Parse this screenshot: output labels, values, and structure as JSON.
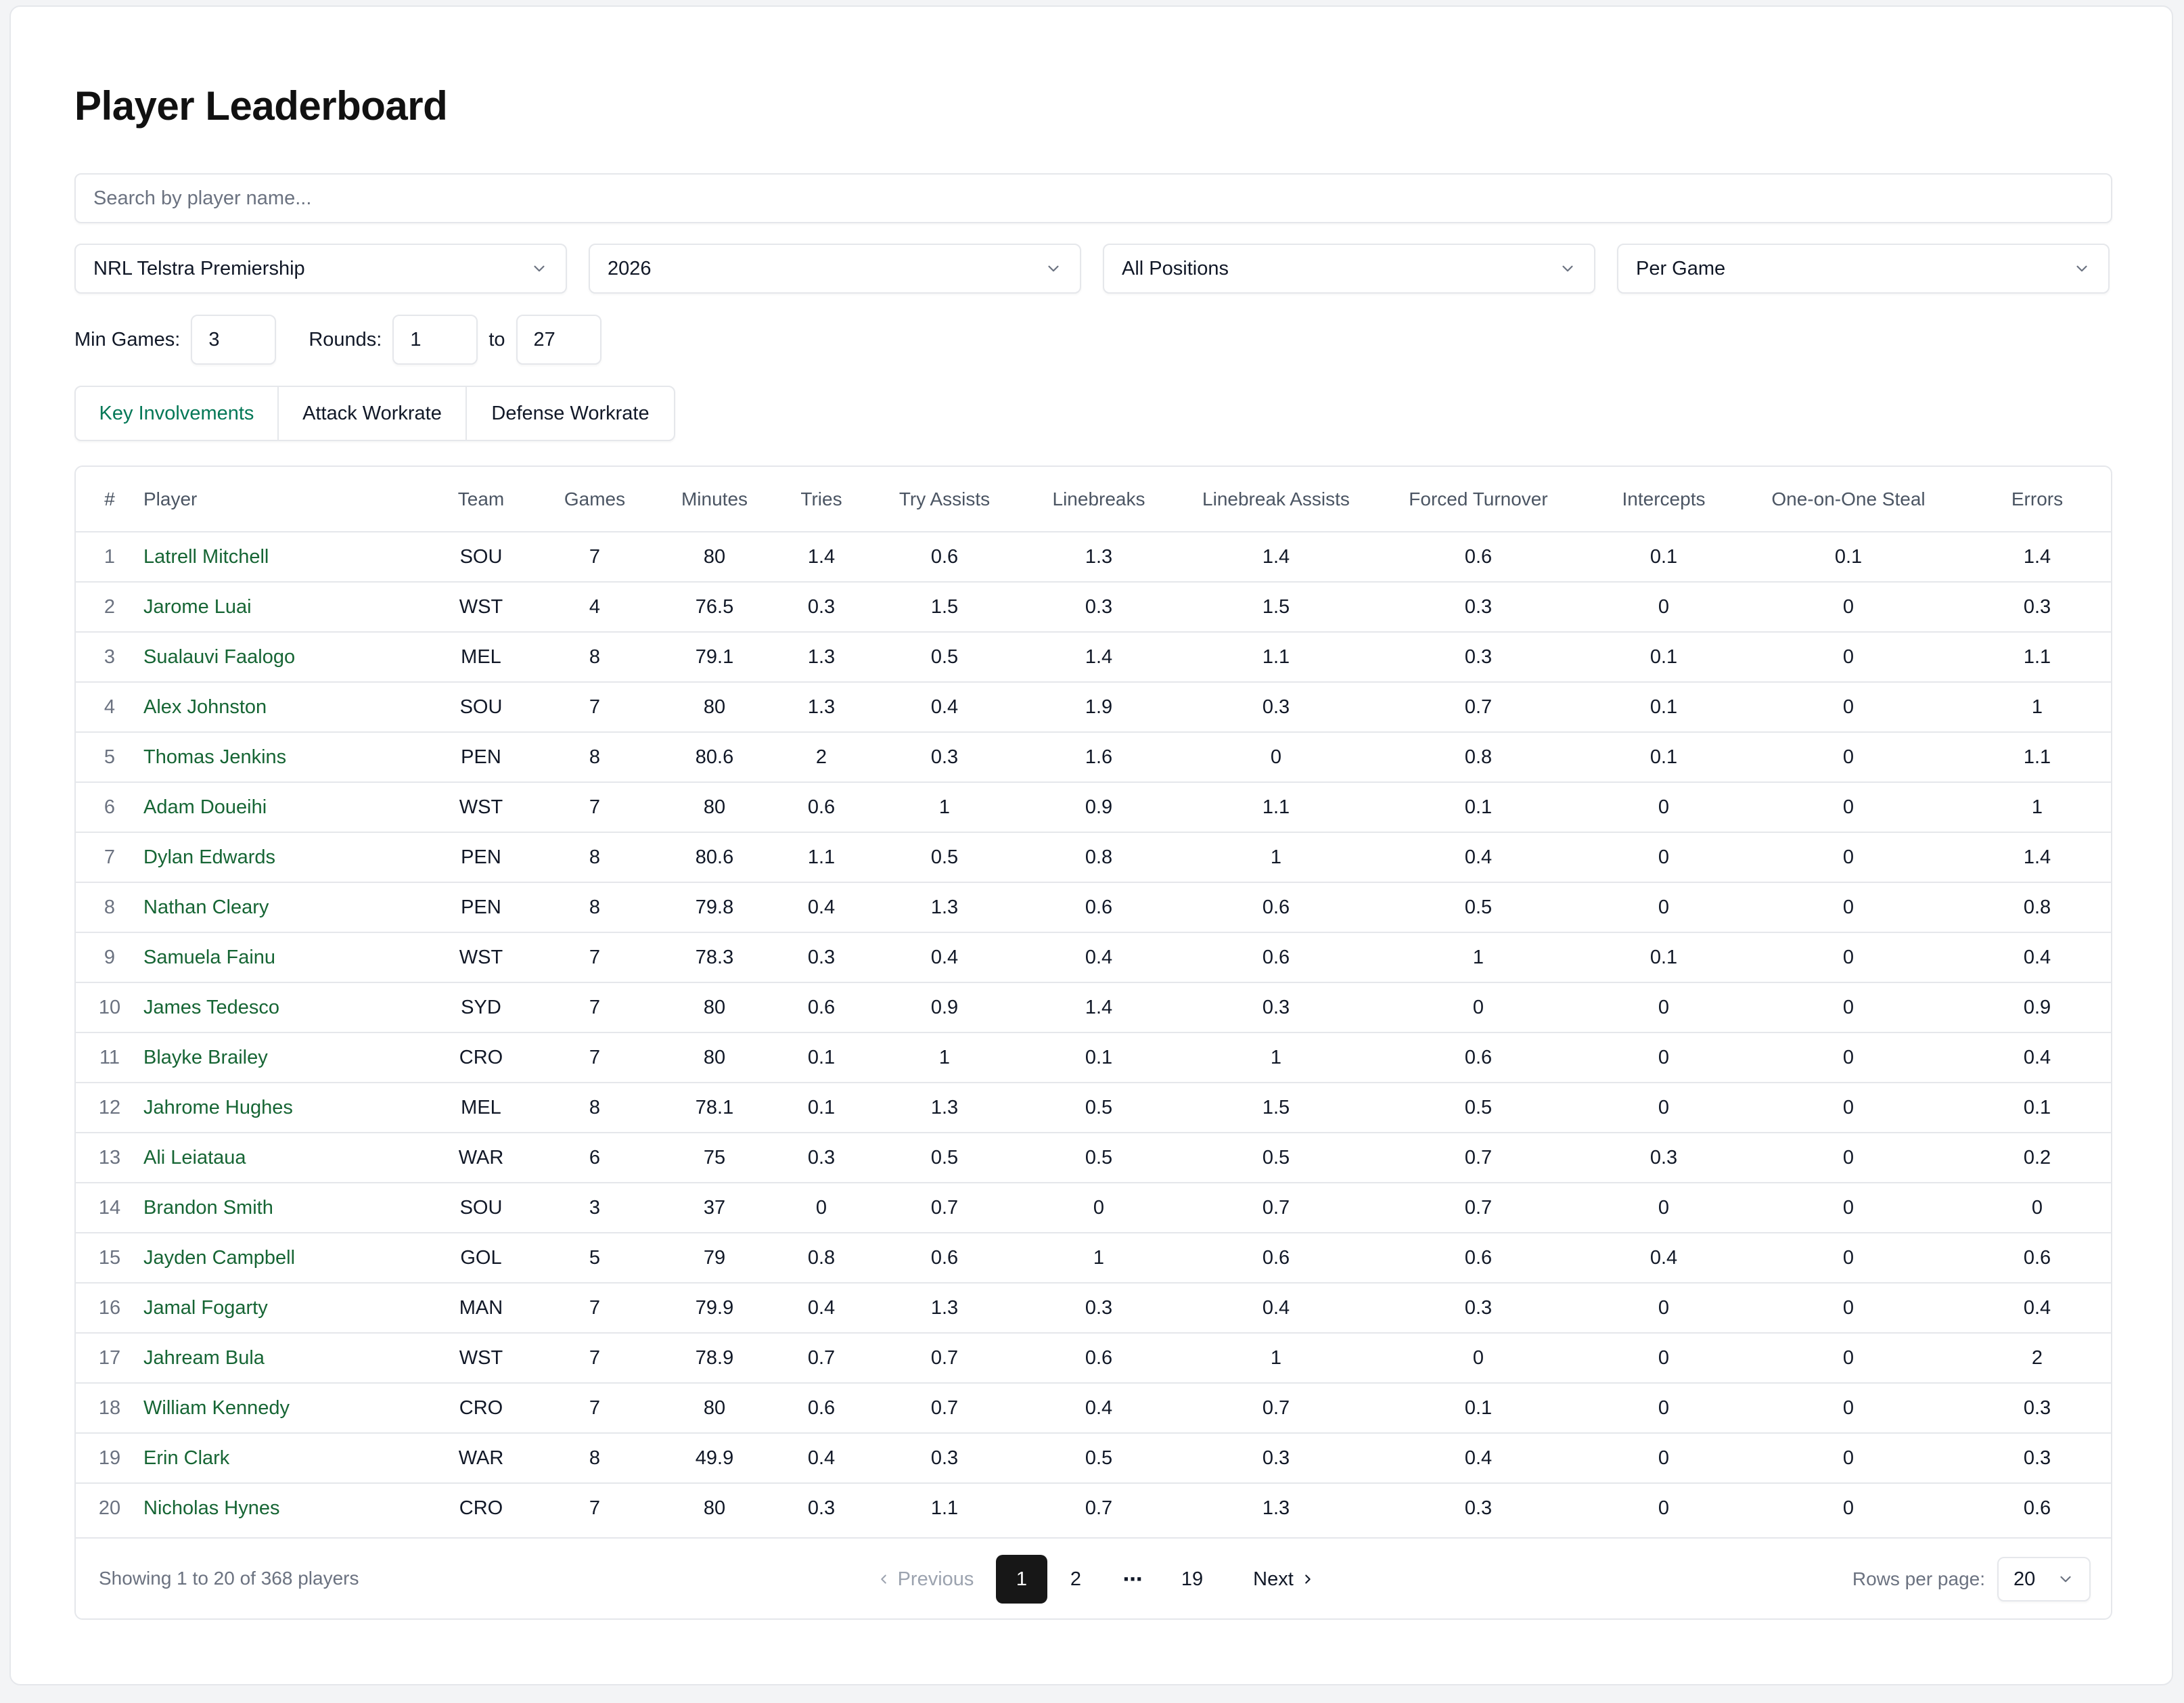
{
  "page": {
    "title": "Player Leaderboard"
  },
  "search": {
    "placeholder": "Search by player name..."
  },
  "filters": {
    "competition": "NRL Telstra Premiership",
    "season": "2026",
    "position": "All Positions",
    "mode": "Per Game",
    "min_games_label": "Min Games:",
    "min_games": "3",
    "rounds_label": "Rounds:",
    "round_from": "1",
    "to_label": "to",
    "round_to": "27"
  },
  "tabs": [
    "Key Involvements",
    "Attack Workrate",
    "Defense Workrate"
  ],
  "active_tab": 0,
  "accent_color": "#047857",
  "table": {
    "headers": [
      "#",
      "Player",
      "Team",
      "Games",
      "Minutes",
      "Tries",
      "Try Assists",
      "Linebreaks",
      "Linebreak Assists",
      "Forced Turnover",
      "Intercepts",
      "One-on-One Steal",
      "Errors"
    ],
    "rows": [
      [
        "1",
        "Latrell Mitchell",
        "SOU",
        "7",
        "80",
        "1.4",
        "0.6",
        "1.3",
        "1.4",
        "0.6",
        "0.1",
        "0.1",
        "1.4"
      ],
      [
        "2",
        "Jarome Luai",
        "WST",
        "4",
        "76.5",
        "0.3",
        "1.5",
        "0.3",
        "1.5",
        "0.3",
        "0",
        "0",
        "0.3"
      ],
      [
        "3",
        "Sualauvi Faalogo",
        "MEL",
        "8",
        "79.1",
        "1.3",
        "0.5",
        "1.4",
        "1.1",
        "0.3",
        "0.1",
        "0",
        "1.1"
      ],
      [
        "4",
        "Alex Johnston",
        "SOU",
        "7",
        "80",
        "1.3",
        "0.4",
        "1.9",
        "0.3",
        "0.7",
        "0.1",
        "0",
        "1"
      ],
      [
        "5",
        "Thomas Jenkins",
        "PEN",
        "8",
        "80.6",
        "2",
        "0.3",
        "1.6",
        "0",
        "0.8",
        "0.1",
        "0",
        "1.1"
      ],
      [
        "6",
        "Adam Doueihi",
        "WST",
        "7",
        "80",
        "0.6",
        "1",
        "0.9",
        "1.1",
        "0.1",
        "0",
        "0",
        "1"
      ],
      [
        "7",
        "Dylan Edwards",
        "PEN",
        "8",
        "80.6",
        "1.1",
        "0.5",
        "0.8",
        "1",
        "0.4",
        "0",
        "0",
        "1.4"
      ],
      [
        "8",
        "Nathan Cleary",
        "PEN",
        "8",
        "79.8",
        "0.4",
        "1.3",
        "0.6",
        "0.6",
        "0.5",
        "0",
        "0",
        "0.8"
      ],
      [
        "9",
        "Samuela Fainu",
        "WST",
        "7",
        "78.3",
        "0.3",
        "0.4",
        "0.4",
        "0.6",
        "1",
        "0.1",
        "0",
        "0.4"
      ],
      [
        "10",
        "James Tedesco",
        "SYD",
        "7",
        "80",
        "0.6",
        "0.9",
        "1.4",
        "0.3",
        "0",
        "0",
        "0",
        "0.9"
      ],
      [
        "11",
        "Blayke Brailey",
        "CRO",
        "7",
        "80",
        "0.1",
        "1",
        "0.1",
        "1",
        "0.6",
        "0",
        "0",
        "0.4"
      ],
      [
        "12",
        "Jahrome Hughes",
        "MEL",
        "8",
        "78.1",
        "0.1",
        "1.3",
        "0.5",
        "1.5",
        "0.5",
        "0",
        "0",
        "0.1"
      ],
      [
        "13",
        "Ali Leiataua",
        "WAR",
        "6",
        "75",
        "0.3",
        "0.5",
        "0.5",
        "0.5",
        "0.7",
        "0.3",
        "0",
        "0.2"
      ],
      [
        "14",
        "Brandon Smith",
        "SOU",
        "3",
        "37",
        "0",
        "0.7",
        "0",
        "0.7",
        "0.7",
        "0",
        "0",
        "0"
      ],
      [
        "15",
        "Jayden Campbell",
        "GOL",
        "5",
        "79",
        "0.8",
        "0.6",
        "1",
        "0.6",
        "0.6",
        "0.4",
        "0",
        "0.6"
      ],
      [
        "16",
        "Jamal Fogarty",
        "MAN",
        "7",
        "79.9",
        "0.4",
        "1.3",
        "0.3",
        "0.4",
        "0.3",
        "0",
        "0",
        "0.4"
      ],
      [
        "17",
        "Jahream Bula",
        "WST",
        "7",
        "78.9",
        "0.7",
        "0.7",
        "0.6",
        "1",
        "0",
        "0",
        "0",
        "2"
      ],
      [
        "18",
        "William Kennedy",
        "CRO",
        "7",
        "80",
        "0.6",
        "0.7",
        "0.4",
        "0.7",
        "0.1",
        "0",
        "0",
        "0.3"
      ],
      [
        "19",
        "Erin Clark",
        "WAR",
        "8",
        "49.9",
        "0.4",
        "0.3",
        "0.5",
        "0.3",
        "0.4",
        "0",
        "0",
        "0.3"
      ],
      [
        "20",
        "Nicholas Hynes",
        "CRO",
        "7",
        "80",
        "0.3",
        "1.1",
        "0.7",
        "1.3",
        "0.3",
        "0",
        "0",
        "0.6"
      ]
    ]
  },
  "pagination": {
    "summary": "Showing 1 to 20 of 368 players",
    "previous": "Previous",
    "next": "Next",
    "pages": [
      "1",
      "2",
      "19"
    ],
    "ellipsis": "⋯",
    "current": "1",
    "rows_per_page_label": "Rows per page:",
    "rows_per_page": "20"
  }
}
